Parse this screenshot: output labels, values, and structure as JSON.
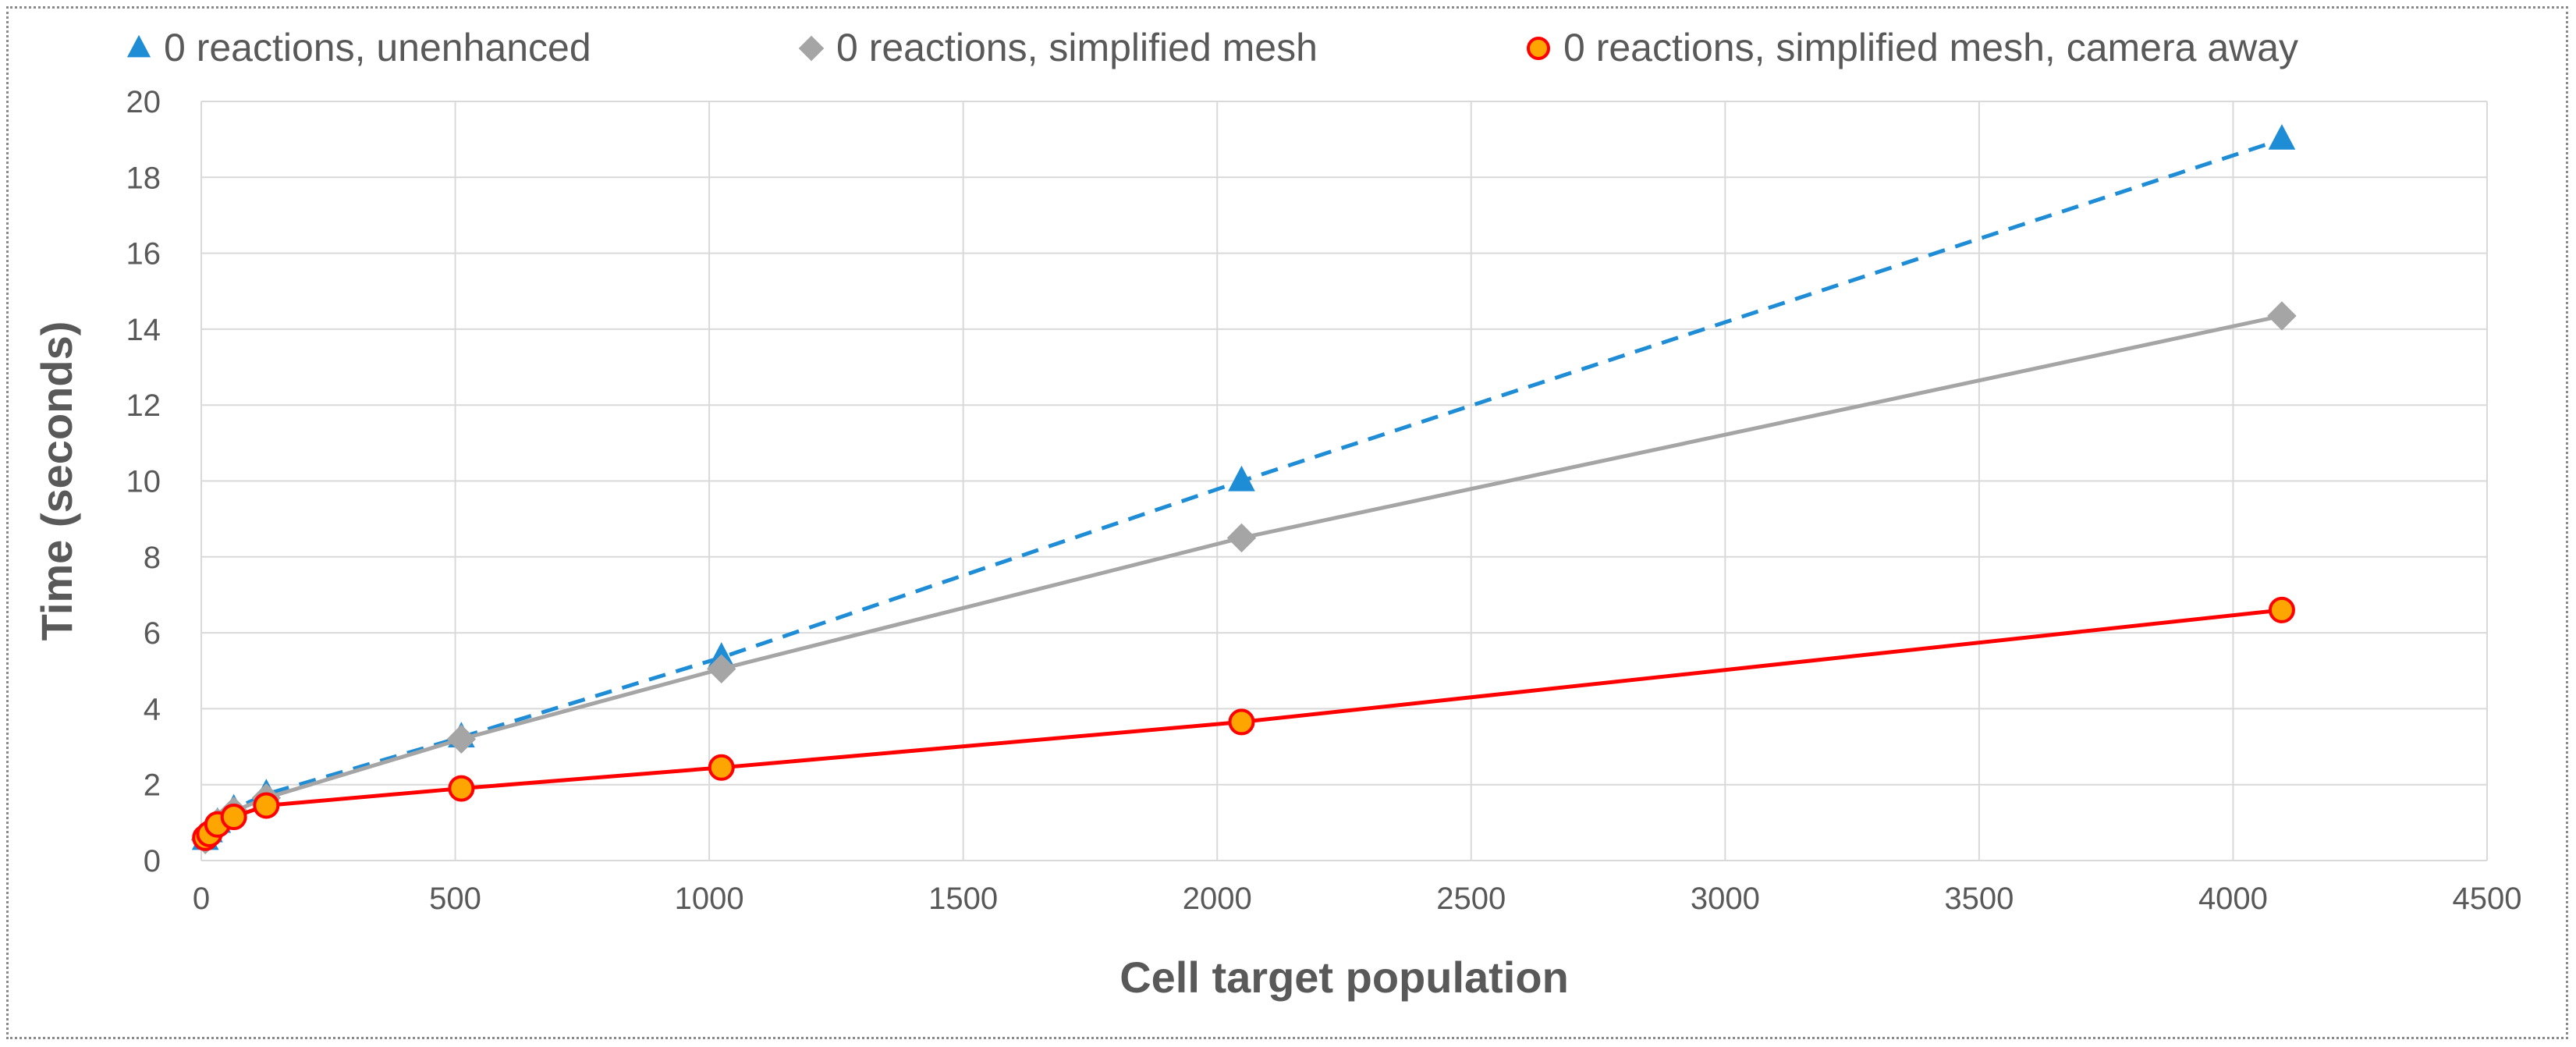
{
  "chart_data": {
    "type": "line",
    "title": "",
    "xlabel": "Cell target population",
    "ylabel": "Time (seconds)",
    "xlim": [
      0,
      4500
    ],
    "ylim": [
      0,
      20
    ],
    "xticks": [
      0,
      500,
      1000,
      1500,
      2000,
      2500,
      3000,
      3500,
      4000,
      4500
    ],
    "yticks": [
      0,
      2,
      4,
      6,
      8,
      10,
      12,
      14,
      16,
      18,
      20
    ],
    "grid": true,
    "legend_position": "top",
    "series": [
      {
        "name": "0 reactions, unenhanced",
        "color": "#1f8dd6",
        "marker": "triangle",
        "line_style": "dashed",
        "x": [
          8,
          16,
          32,
          64,
          128,
          512,
          1024,
          2048,
          4096
        ],
        "y": [
          0.55,
          0.75,
          1.0,
          1.35,
          1.75,
          3.25,
          5.35,
          10.0,
          19.0
        ]
      },
      {
        "name": "0 reactions, simplified mesh",
        "color": "#a5a5a5",
        "marker": "diamond",
        "line_style": "solid",
        "x": [
          8,
          16,
          32,
          64,
          128,
          512,
          1024,
          2048,
          4096
        ],
        "y": [
          0.55,
          0.75,
          1.0,
          1.3,
          1.65,
          3.2,
          5.05,
          8.5,
          14.35
        ]
      },
      {
        "name": "0 reactions, simplified mesh, camera away",
        "color": "#ff0000",
        "marker_fill": "#ffa500",
        "marker": "circle",
        "line_style": "solid",
        "x": [
          8,
          16,
          32,
          64,
          128,
          512,
          1024,
          2048,
          4096
        ],
        "y": [
          0.6,
          0.7,
          0.95,
          1.15,
          1.45,
          1.9,
          2.45,
          3.65,
          6.6
        ]
      }
    ]
  }
}
